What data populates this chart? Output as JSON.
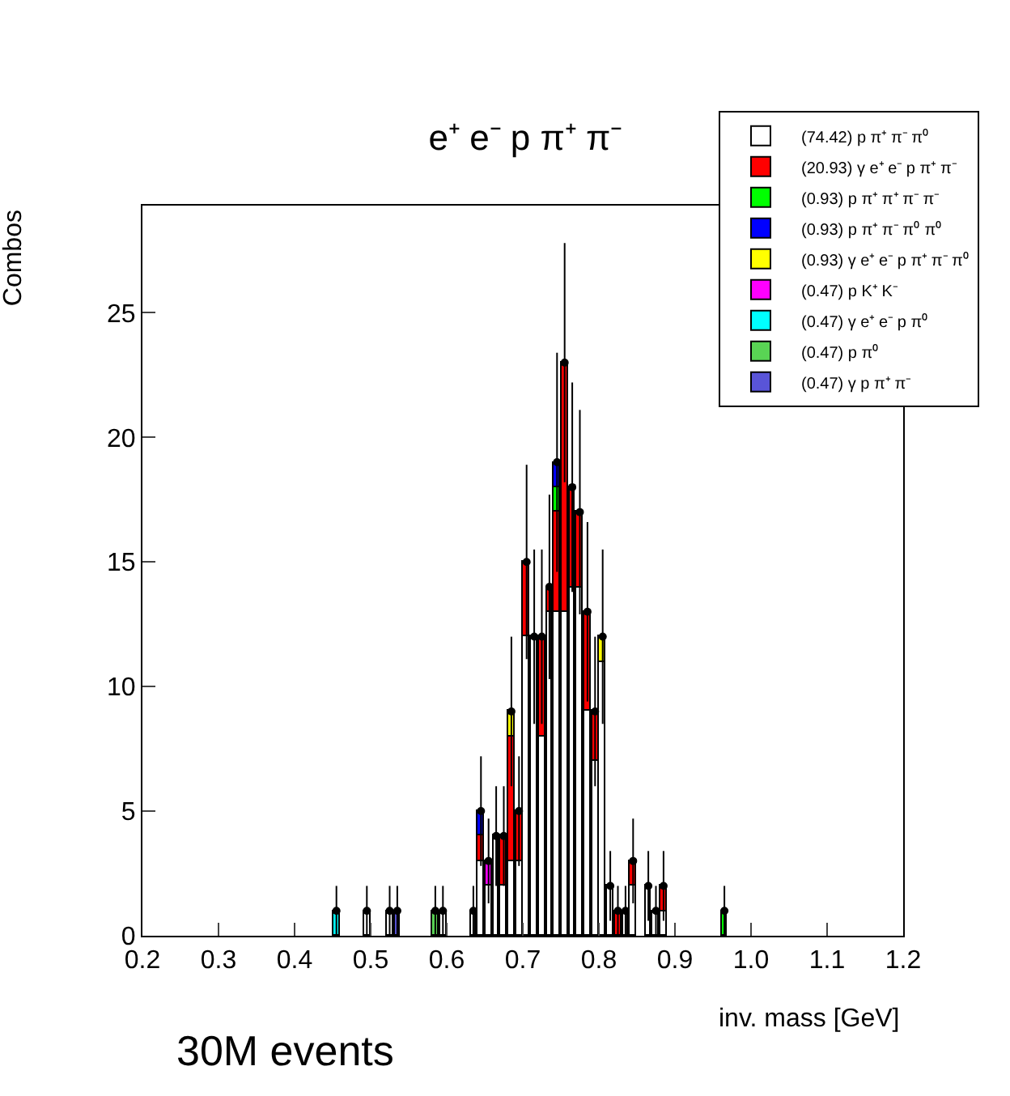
{
  "chart_data": {
    "type": "bar",
    "stacked": true,
    "title": "e⁺ e⁻ p π⁺ π⁻",
    "xlabel": "inv. mass [GeV]",
    "ylabel": "Combos",
    "annotations": [
      "30M events"
    ],
    "x": [
      0.455,
      0.495,
      0.525,
      0.535,
      0.585,
      0.595,
      0.635,
      0.645,
      0.655,
      0.665,
      0.675,
      0.685,
      0.695,
      0.705,
      0.715,
      0.725,
      0.735,
      0.745,
      0.755,
      0.765,
      0.775,
      0.785,
      0.795,
      0.805,
      0.815,
      0.825,
      0.835,
      0.845,
      0.865,
      0.875,
      0.885,
      0.965
    ],
    "series": [
      {
        "name": "(74.42) p π⁺ π⁻ π⁰",
        "color": "#ffffff",
        "values": [
          null,
          1,
          1,
          null,
          null,
          1,
          1,
          3,
          2,
          4,
          2,
          3,
          3,
          12,
          12,
          8,
          13,
          13,
          13,
          14,
          14,
          9,
          7,
          11,
          2,
          null,
          1,
          2,
          2,
          1,
          1,
          null
        ]
      },
      {
        "name": "(20.93) γ e⁺ e⁻ p π⁺ π⁻",
        "color": "#ff0000",
        "values": [
          null,
          null,
          null,
          null,
          null,
          null,
          null,
          1,
          null,
          null,
          2,
          5,
          2,
          3,
          null,
          4,
          1,
          4,
          10,
          4,
          3,
          4,
          2,
          null,
          null,
          1,
          null,
          1,
          null,
          null,
          1,
          null
        ]
      },
      {
        "name": "(0.93) p π⁺ π⁺ π⁻ π⁻",
        "color": "#00ff00",
        "values": [
          null,
          null,
          null,
          null,
          null,
          null,
          null,
          null,
          null,
          null,
          null,
          null,
          null,
          null,
          null,
          null,
          null,
          1,
          null,
          null,
          null,
          null,
          null,
          null,
          null,
          null,
          null,
          null,
          null,
          null,
          null,
          1
        ]
      },
      {
        "name": "(0.93) p π⁺ π⁻ π⁰ π⁰",
        "color": "#0000ff",
        "values": [
          null,
          null,
          null,
          null,
          null,
          null,
          null,
          1,
          null,
          null,
          null,
          null,
          null,
          null,
          null,
          null,
          null,
          1,
          null,
          null,
          null,
          null,
          null,
          null,
          null,
          null,
          null,
          null,
          null,
          null,
          null,
          null
        ]
      },
      {
        "name": "(0.93) γ e⁺ e⁻ p π⁺ π⁻ π⁰",
        "color": "#ffff00",
        "values": [
          null,
          null,
          null,
          null,
          null,
          null,
          null,
          null,
          null,
          null,
          null,
          1,
          null,
          null,
          null,
          null,
          null,
          null,
          null,
          null,
          null,
          null,
          null,
          1,
          null,
          null,
          null,
          null,
          null,
          null,
          null,
          null
        ]
      },
      {
        "name": "(0.47) p K⁺ K⁻",
        "color": "#ff00ff",
        "values": [
          null,
          null,
          null,
          null,
          null,
          null,
          null,
          null,
          1,
          null,
          null,
          null,
          null,
          null,
          null,
          null,
          null,
          null,
          null,
          null,
          null,
          null,
          null,
          null,
          null,
          null,
          null,
          null,
          null,
          null,
          null,
          null
        ]
      },
      {
        "name": "(0.47) γ e⁺ e⁻ p π⁰",
        "color": "#00ffff",
        "values": [
          1,
          null,
          null,
          null,
          null,
          null,
          null,
          null,
          null,
          null,
          null,
          null,
          null,
          null,
          null,
          null,
          null,
          null,
          null,
          null,
          null,
          null,
          null,
          null,
          null,
          null,
          null,
          null,
          null,
          null,
          null,
          null
        ]
      },
      {
        "name": "(0.47) p π⁰",
        "color": "#59d454",
        "values": [
          null,
          null,
          null,
          null,
          1,
          null,
          null,
          null,
          null,
          null,
          null,
          null,
          null,
          null,
          null,
          null,
          null,
          null,
          null,
          null,
          null,
          null,
          null,
          null,
          null,
          null,
          null,
          null,
          null,
          null,
          null,
          null
        ]
      },
      {
        "name": "(0.47) γ p π⁺ π⁻",
        "color": "#5954d8",
        "values": [
          null,
          null,
          null,
          1,
          null,
          null,
          null,
          null,
          null,
          null,
          null,
          null,
          null,
          null,
          null,
          null,
          null,
          null,
          null,
          null,
          null,
          null,
          null,
          null,
          null,
          null,
          null,
          null,
          null,
          null,
          null,
          null
        ]
      },
      {
        "type": "scatter",
        "color": "#000000",
        "marker": "circle",
        "values": [
          1,
          1,
          1,
          1,
          1,
          1,
          1,
          5,
          3,
          4,
          4,
          9,
          5,
          15,
          12,
          12,
          14,
          19,
          23,
          18,
          17,
          13,
          9,
          12,
          2,
          1,
          1,
          3,
          2,
          1,
          2,
          1
        ],
        "errors": [
          1,
          1,
          1,
          1,
          1,
          1,
          1,
          2.2,
          1.7,
          2,
          2,
          3,
          2.2,
          3.9,
          3.5,
          3.5,
          3.7,
          4.4,
          4.8,
          4.2,
          4.1,
          3.6,
          3,
          3.5,
          1.4,
          1,
          1,
          1.7,
          1.4,
          1,
          1.4,
          1
        ]
      }
    ],
    "xlim": [
      0.2,
      1.2
    ],
    "xticks": [
      0.2,
      0.3,
      0.4,
      0.5,
      0.6,
      0.7,
      0.8,
      0.9,
      {
        "value": 1,
        "label": "1.0"
      },
      1.1,
      1.2
    ],
    "ylim": [
      0,
      29.3
    ],
    "yticks": [
      0,
      5,
      10,
      15,
      20,
      25
    ],
    "legend": "top right"
  }
}
